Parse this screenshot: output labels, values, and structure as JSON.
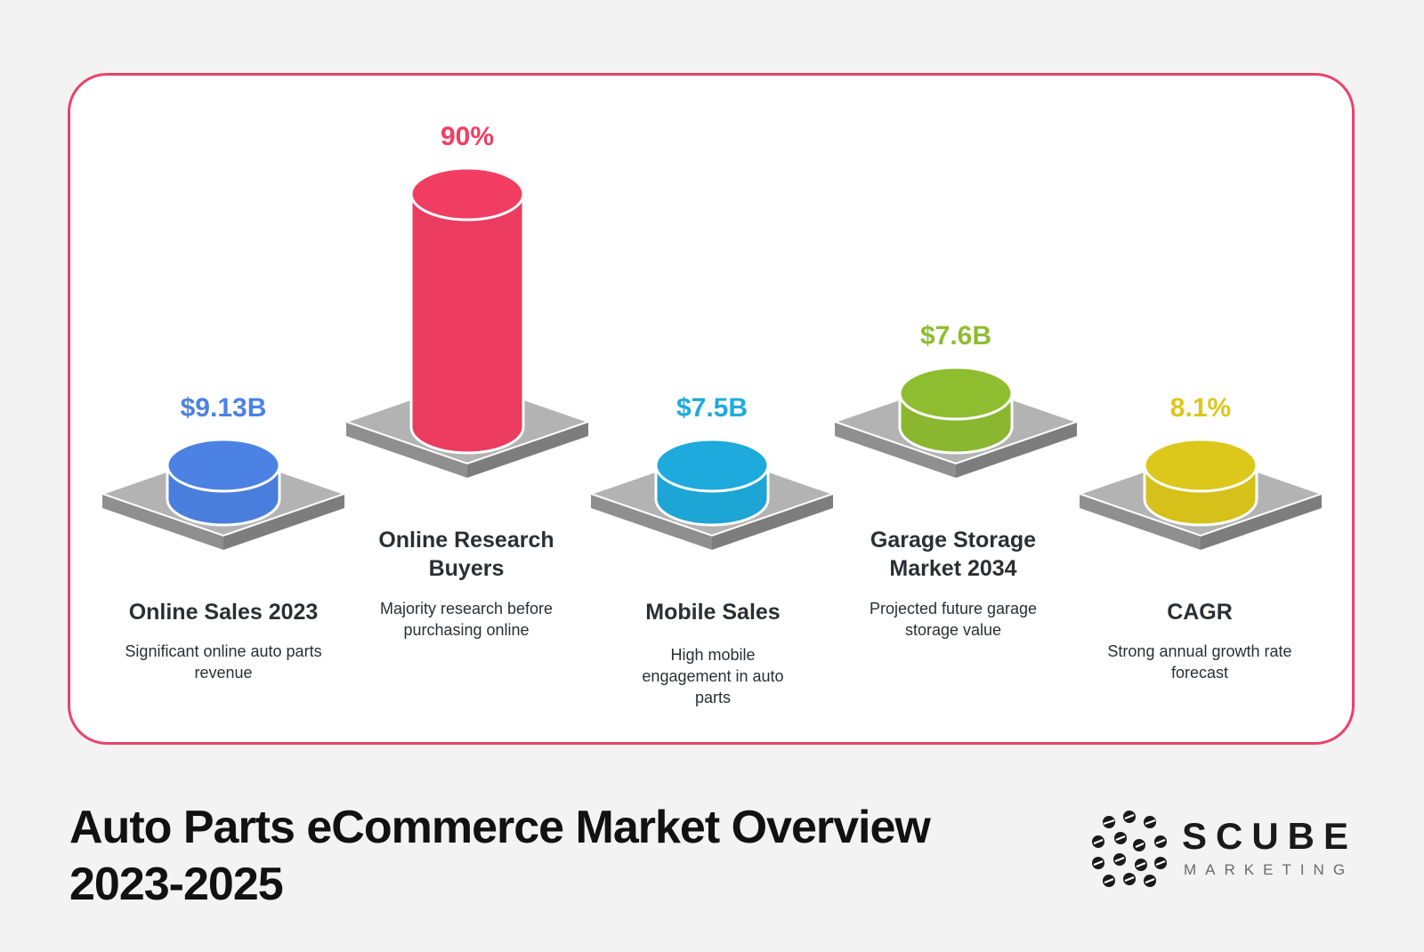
{
  "chart_data": {
    "type": "bar",
    "title": "Auto Parts eCommerce Market Overview",
    "subtitle": "2023-2025",
    "items": [
      {
        "label": "Online Sales 2023",
        "value_label": "$9.13B",
        "description": "Significant online auto parts revenue",
        "color": "#4b82e3",
        "relative_height": 0.12
      },
      {
        "label": "Online Research Buyers",
        "value_label": "90%",
        "description": "Majority research before purchasing online",
        "color": "#f23d62",
        "relative_height": 1.0
      },
      {
        "label": "Mobile Sales",
        "value_label": "$7.5B",
        "description": "High mobile engagement in auto parts",
        "color": "#1eaadd",
        "relative_height": 0.12
      },
      {
        "label": "Garage Storage Market 2034",
        "value_label": "$7.6B",
        "description": "Projected future garage storage value",
        "color": "#8ebd30",
        "relative_height": 0.12
      },
      {
        "label": "CAGR",
        "value_label": "8.1%",
        "description": "Strong annual growth rate forecast",
        "color": "#dcc71b",
        "relative_height": 0.12
      }
    ]
  },
  "footer": {
    "title_line1": "Auto Parts eCommerce Market Overview",
    "title_line2": "2023-2025"
  },
  "logo": {
    "name": "SCUBE",
    "sub": "MARKETING",
    "icon": "scube-dots-icon"
  }
}
